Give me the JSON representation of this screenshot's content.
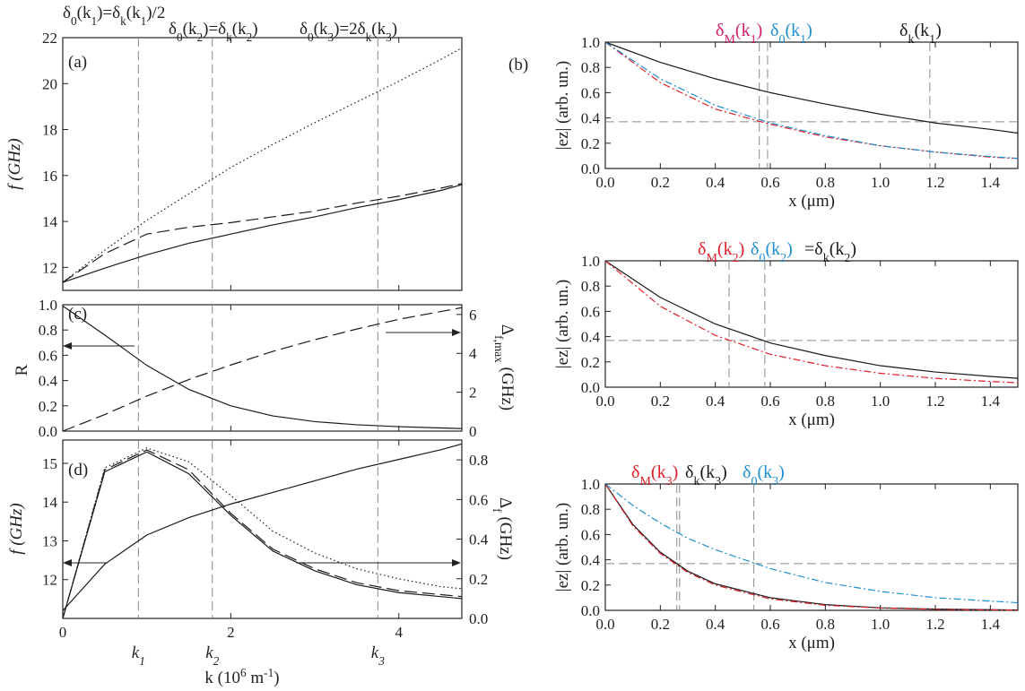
{
  "figure": {
    "header_a": [
      {
        "id": "h1",
        "text": "δ0(k1)=δk(k1)/2"
      },
      {
        "id": "h2",
        "text": "δ0(k2)=δk(k2)"
      },
      {
        "id": "h3",
        "text": "δ0(k3)=2δk(k3)"
      }
    ],
    "k_markers": [
      {
        "k": 0.9,
        "label": "k1"
      },
      {
        "k": 1.78,
        "label": "k2"
      },
      {
        "k": 3.75,
        "label": "k3"
      }
    ],
    "k_axis_label": "k (10^6 m^-1)"
  },
  "colors": {
    "solid": "#1a1a1a",
    "red": "#e0202a",
    "blue": "#1e8fd0",
    "magenta": "#d0206a",
    "guide": "#8a8a8a"
  },
  "chart_data": [
    {
      "id": "a",
      "panel_label": "(a)",
      "type": "line",
      "xlabel": "",
      "ylabel": "f (GHz)",
      "xlim": [
        0,
        4.75
      ],
      "ylim": [
        11,
        22
      ],
      "yticks": [
        12,
        14,
        16,
        18,
        20,
        22
      ],
      "xticks": [
        0,
        2,
        4
      ],
      "x": [
        0.0,
        0.5,
        1.0,
        1.5,
        2.0,
        2.5,
        3.0,
        3.5,
        4.0,
        4.5,
        4.75
      ],
      "series": [
        {
          "name": "solid",
          "style": "solid",
          "values": [
            11.35,
            11.97,
            12.55,
            13.05,
            13.45,
            13.85,
            14.2,
            14.6,
            14.95,
            15.35,
            15.6
          ]
        },
        {
          "name": "dashed",
          "style": "dashed",
          "values": [
            11.35,
            12.6,
            13.45,
            13.75,
            13.95,
            14.2,
            14.45,
            14.8,
            15.1,
            15.45,
            15.65
          ]
        },
        {
          "name": "dotted",
          "style": "dotted",
          "values": [
            11.35,
            12.75,
            14.05,
            15.2,
            16.35,
            17.35,
            18.3,
            19.2,
            20.1,
            21.05,
            21.55
          ]
        }
      ]
    },
    {
      "id": "c",
      "panel_label": "(c)",
      "type": "line",
      "xlabel": "",
      "ylabel": "R",
      "y2label": "Δf,max (GHz)",
      "xlim": [
        0,
        4.75
      ],
      "ylim": [
        0,
        1.0
      ],
      "y2lim": [
        0,
        6.5
      ],
      "yticks": [
        0.0,
        0.2,
        0.4,
        0.6,
        0.8,
        1.0
      ],
      "y2ticks": [
        0,
        2,
        4,
        6
      ],
      "xticks": [
        0,
        2,
        4
      ],
      "x": [
        0.0,
        0.5,
        1.0,
        1.5,
        2.0,
        2.5,
        3.0,
        3.5,
        4.0,
        4.5,
        4.75
      ],
      "series": [
        {
          "name": "R",
          "axis": "left",
          "style": "solid",
          "values": [
            0.99,
            0.76,
            0.52,
            0.33,
            0.2,
            0.12,
            0.075,
            0.05,
            0.035,
            0.025,
            0.02
          ]
        },
        {
          "name": "Δf,max",
          "axis": "right",
          "style": "dashed",
          "values": [
            0.0,
            0.85,
            1.8,
            2.65,
            3.4,
            4.1,
            4.7,
            5.25,
            5.75,
            6.15,
            6.35
          ]
        }
      ],
      "arrows": [
        "left",
        "right"
      ]
    },
    {
      "id": "d",
      "panel_label": "(d)",
      "type": "line",
      "xlabel": "k (10^6 m^-1)",
      "ylabel": "f (GHz)",
      "y2label": "Δf (GHz)",
      "xlim": [
        0,
        4.75
      ],
      "ylim": [
        11,
        15.6
      ],
      "y2lim": [
        0,
        0.9
      ],
      "yticks": [
        12,
        13,
        14,
        15
      ],
      "y2ticks": [
        0.0,
        0.2,
        0.4,
        0.6,
        0.8
      ],
      "xticks": [
        0,
        2,
        4
      ],
      "x": [
        0.0,
        0.5,
        1.0,
        1.5,
        2.0,
        2.5,
        3.0,
        3.5,
        4.0,
        4.5,
        4.75
      ],
      "series": [
        {
          "name": "f",
          "axis": "left",
          "style": "solid",
          "values": [
            11.2,
            12.4,
            13.15,
            13.6,
            13.95,
            14.25,
            14.55,
            14.85,
            15.1,
            15.35,
            15.5
          ]
        },
        {
          "name": "Δf solid",
          "axis": "right",
          "style": "solid",
          "values": [
            0.0,
            0.74,
            0.84,
            0.73,
            0.52,
            0.34,
            0.24,
            0.17,
            0.13,
            0.11,
            0.1
          ]
        },
        {
          "name": "Δf dashed",
          "axis": "right",
          "style": "dashed",
          "values": [
            0.0,
            0.75,
            0.85,
            0.75,
            0.53,
            0.35,
            0.25,
            0.18,
            0.14,
            0.12,
            0.11
          ]
        },
        {
          "name": "Δf dotted",
          "axis": "right",
          "style": "dotted",
          "values": [
            0.0,
            0.76,
            0.86,
            0.79,
            0.62,
            0.44,
            0.33,
            0.25,
            0.2,
            0.16,
            0.15
          ]
        }
      ],
      "arrows": [
        "left",
        "right"
      ]
    },
    {
      "id": "b1",
      "panel_label": "(b)",
      "type": "line",
      "xlabel": "x (μm)",
      "ylabel": "|ez| (arb. un.)",
      "xlim": [
        0,
        1.5
      ],
      "ylim": [
        0,
        1.0
      ],
      "xticks": [
        0.0,
        0.2,
        0.4,
        0.6,
        0.8,
        1.0,
        1.2,
        1.4
      ],
      "yticks": [
        0.0,
        0.2,
        0.4,
        0.6,
        0.8,
        1.0
      ],
      "x": [
        0.0,
        0.2,
        0.4,
        0.6,
        0.8,
        1.0,
        1.2,
        1.4,
        1.5
      ],
      "series": [
        {
          "name": "solid",
          "color": "solid",
          "style": "solid",
          "values": [
            1.0,
            0.84,
            0.71,
            0.6,
            0.51,
            0.43,
            0.36,
            0.31,
            0.28
          ]
        },
        {
          "name": "red",
          "color": "red",
          "style": "dashdot",
          "values": [
            1.0,
            0.68,
            0.47,
            0.35,
            0.25,
            0.18,
            0.13,
            0.09,
            0.08
          ]
        },
        {
          "name": "blue",
          "color": "blue",
          "style": "dashdot",
          "values": [
            1.0,
            0.71,
            0.5,
            0.36,
            0.26,
            0.18,
            0.13,
            0.095,
            0.08
          ]
        }
      ],
      "hline": 0.37,
      "vlines": [
        0.56,
        0.59,
        1.18
      ],
      "annotations": [
        {
          "text": "δM(k1)",
          "color": "magenta"
        },
        {
          "text": "δ0(k1)",
          "color": "blue"
        },
        {
          "text": "δk(k1)",
          "color": "solid"
        }
      ]
    },
    {
      "id": "b2",
      "panel_label": "",
      "type": "line",
      "xlabel": "x (μm)",
      "ylabel": "|ez| (arb. un.)",
      "xlim": [
        0,
        1.5
      ],
      "ylim": [
        0,
        1.0
      ],
      "xticks": [
        0.0,
        0.2,
        0.4,
        0.6,
        0.8,
        1.0,
        1.2,
        1.4
      ],
      "yticks": [
        0.0,
        0.2,
        0.4,
        0.6,
        0.8,
        1.0
      ],
      "x": [
        0.0,
        0.2,
        0.4,
        0.6,
        0.8,
        1.0,
        1.2,
        1.4,
        1.5
      ],
      "series": [
        {
          "name": "solid",
          "color": "solid",
          "style": "solid",
          "values": [
            1.0,
            0.71,
            0.5,
            0.35,
            0.25,
            0.17,
            0.12,
            0.085,
            0.07
          ]
        },
        {
          "name": "red",
          "color": "red",
          "style": "dashdot",
          "values": [
            1.0,
            0.64,
            0.41,
            0.26,
            0.17,
            0.11,
            0.07,
            0.045,
            0.035
          ]
        }
      ],
      "hline": 0.37,
      "vlines": [
        0.45,
        0.58
      ],
      "annotations": [
        {
          "text": "δM(k2)",
          "color": "red"
        },
        {
          "text": "δ0(k2)",
          "color": "blue"
        },
        {
          "text": "=δk(k2)",
          "color": "solid"
        }
      ]
    },
    {
      "id": "b3",
      "panel_label": "",
      "type": "line",
      "xlabel": "x (μm)",
      "ylabel": "|ez| (arb. un.)",
      "xlim": [
        0,
        1.5
      ],
      "ylim": [
        0,
        1.0
      ],
      "xticks": [
        0.0,
        0.2,
        0.4,
        0.6,
        0.8,
        1.0,
        1.2,
        1.4
      ],
      "yticks": [
        0.0,
        0.2,
        0.4,
        0.6,
        0.8,
        1.0
      ],
      "x": [
        0.0,
        0.1,
        0.2,
        0.3,
        0.4,
        0.6,
        0.8,
        1.0,
        1.2,
        1.5
      ],
      "series": [
        {
          "name": "solid",
          "color": "solid",
          "style": "solid",
          "values": [
            1.0,
            0.68,
            0.46,
            0.31,
            0.21,
            0.1,
            0.045,
            0.02,
            0.01,
            0.003
          ]
        },
        {
          "name": "red",
          "color": "red",
          "style": "dashdot",
          "values": [
            1.0,
            0.67,
            0.45,
            0.3,
            0.2,
            0.09,
            0.04,
            0.018,
            0.008,
            0.002
          ]
        },
        {
          "name": "blue",
          "color": "blue",
          "style": "dashdot",
          "values": [
            1.0,
            0.83,
            0.69,
            0.57,
            0.48,
            0.33,
            0.22,
            0.15,
            0.1,
            0.06
          ]
        }
      ],
      "hline": 0.37,
      "vlines": [
        0.26,
        0.27,
        0.54
      ],
      "annotations": [
        {
          "text": "δM(k3)",
          "color": "red"
        },
        {
          "text": "δk(k3)",
          "color": "solid"
        },
        {
          "text": "δ0(k3)",
          "color": "blue"
        }
      ]
    }
  ]
}
